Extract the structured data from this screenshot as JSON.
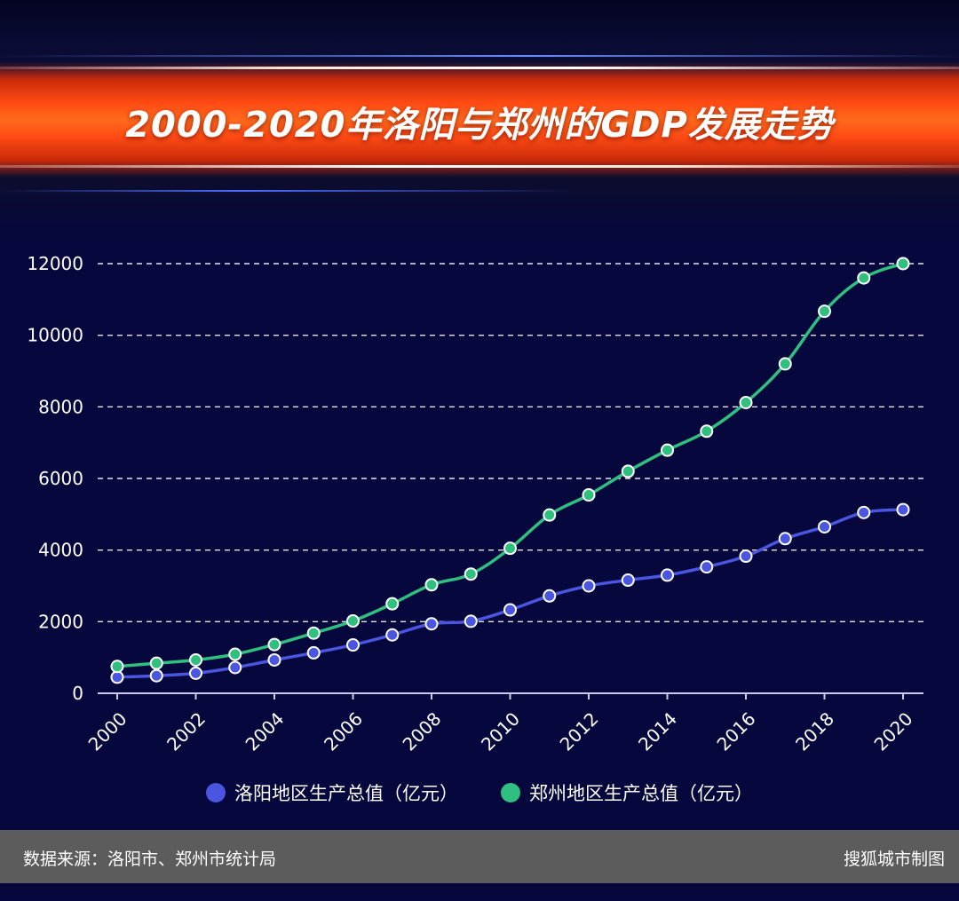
{
  "title": "2000-2020年洛阳与郑州的GDP发展走势",
  "footer": {
    "source": "数据来源：洛阳市、郑州市统计局",
    "credit": "搜狐城市制图"
  },
  "chart_data": {
    "type": "line",
    "x": [
      2000,
      2001,
      2002,
      2003,
      2004,
      2005,
      2006,
      2007,
      2008,
      2009,
      2010,
      2011,
      2012,
      2013,
      2014,
      2015,
      2016,
      2017,
      2018,
      2019,
      2020
    ],
    "x_tick_labels": [
      "2000",
      "2002",
      "2004",
      "2006",
      "2008",
      "2010",
      "2012",
      "2014",
      "2016",
      "2018",
      "2020"
    ],
    "y_tick_labels": [
      "0",
      "2000",
      "4000",
      "6000",
      "8000",
      "10000",
      "12000"
    ],
    "ylim": [
      0,
      12000
    ],
    "grid": "horizontal dashed",
    "legend_position": "bottom",
    "series": [
      {
        "name": "洛阳地区生产总值（亿元）",
        "color": "#4a55e0",
        "values": [
          450,
          490,
          560,
          720,
          930,
          1130,
          1350,
          1630,
          1940,
          2010,
          2330,
          2720,
          3000,
          3160,
          3300,
          3530,
          3830,
          4320,
          4650,
          5050,
          5130
        ]
      },
      {
        "name": "郑州地区生产总值（亿元）",
        "color": "#2fbf7e",
        "values": [
          750,
          840,
          930,
          1090,
          1360,
          1680,
          2020,
          2500,
          3030,
          3330,
          4050,
          4980,
          5540,
          6200,
          6790,
          7320,
          8120,
          9200,
          10670,
          11600,
          12000
        ]
      }
    ]
  }
}
